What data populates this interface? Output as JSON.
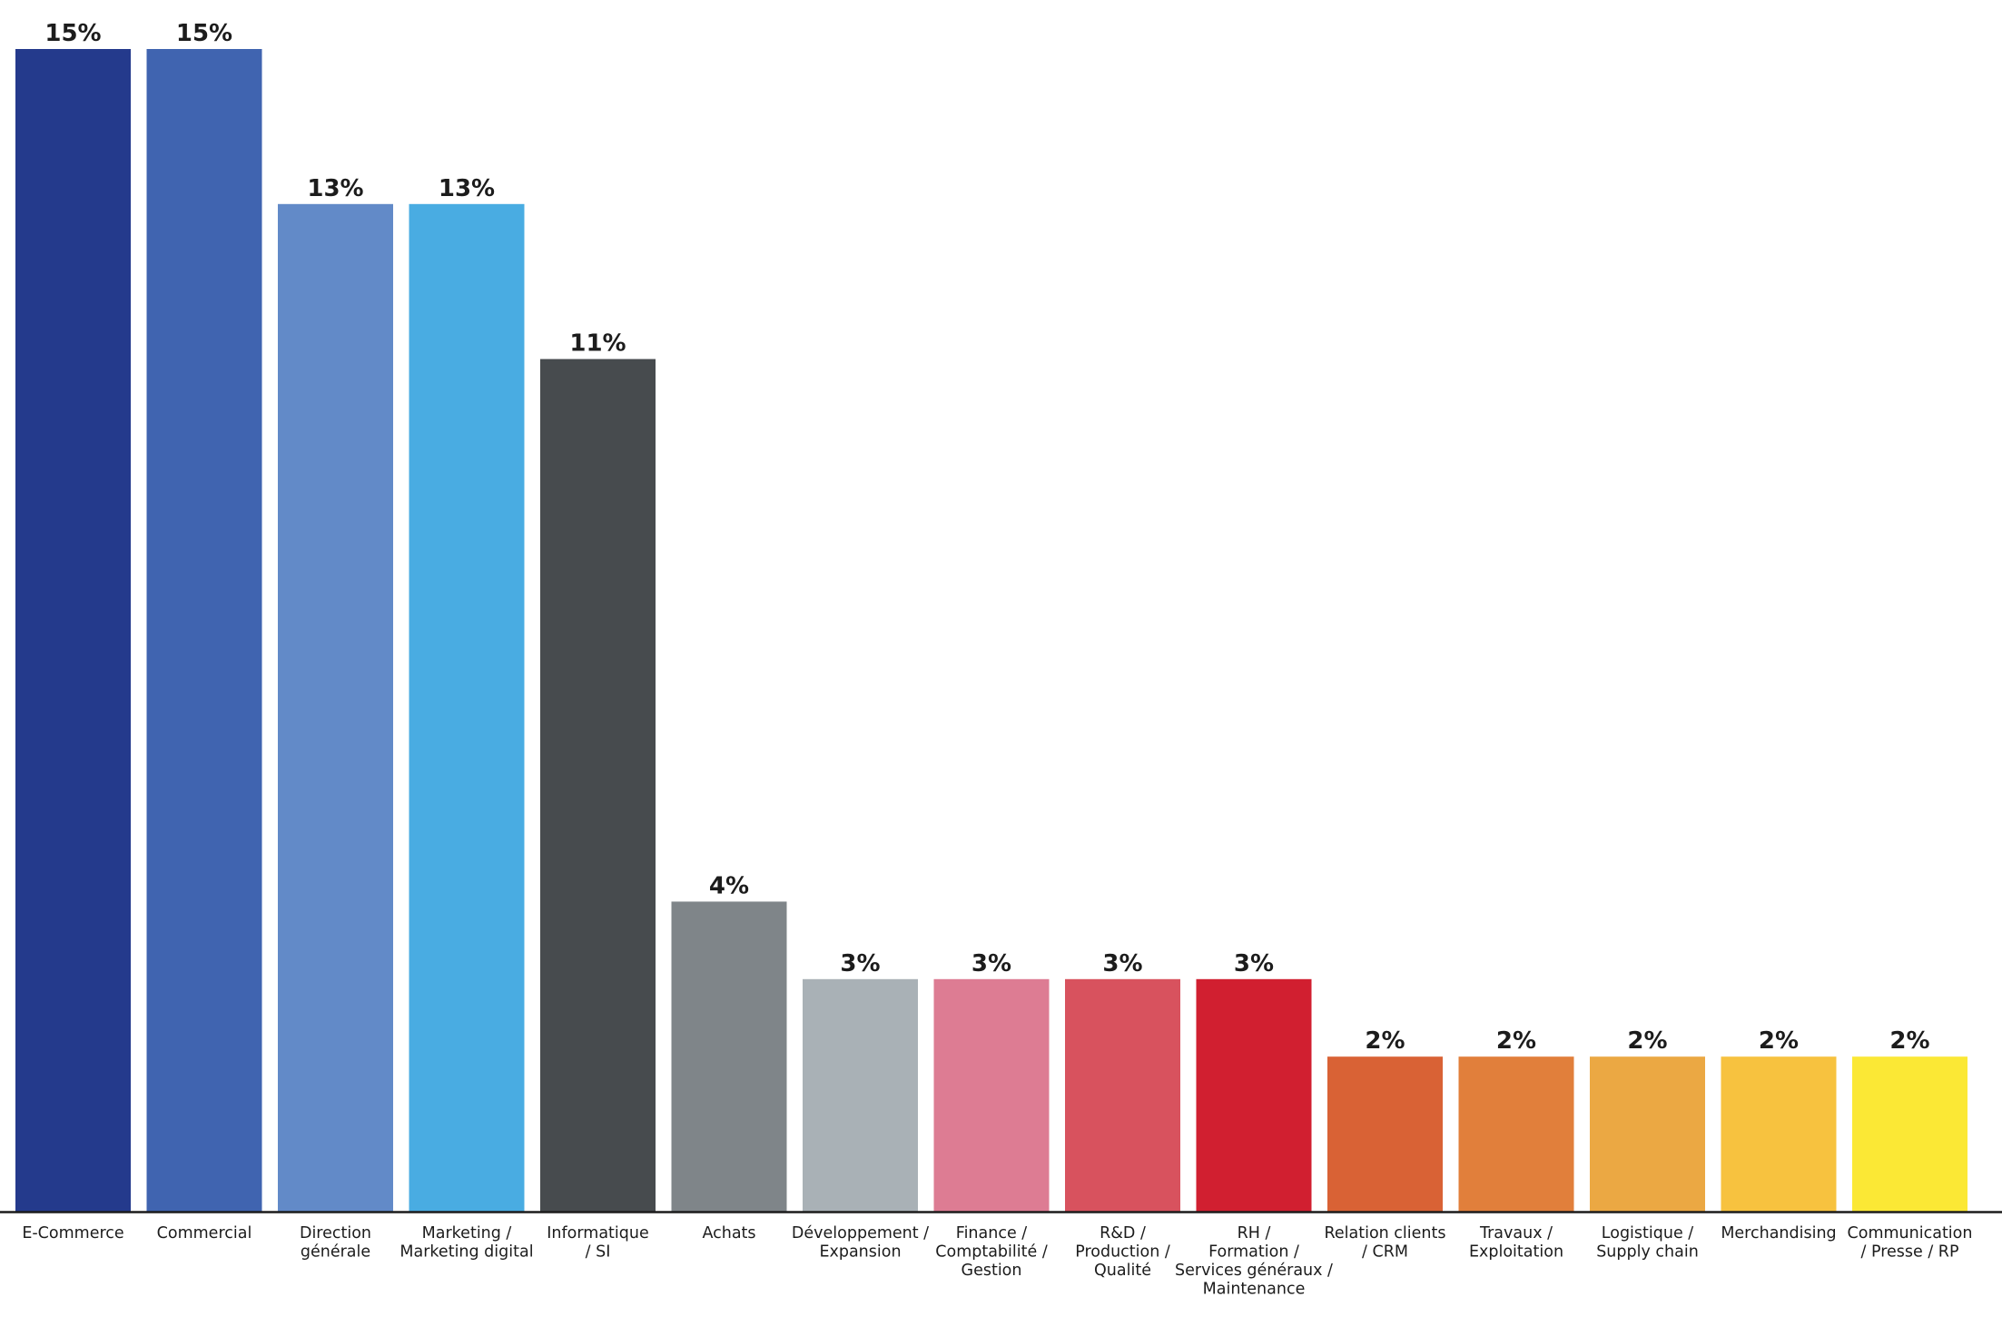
{
  "chart_data": {
    "type": "bar",
    "title": "",
    "xlabel": "",
    "ylabel": "",
    "ylim": [
      0,
      15
    ],
    "grid": false,
    "legend": "none",
    "categories": [
      "E-Commerce",
      "Commercial",
      "Direction générale",
      "Marketing / Marketing digital",
      "Informatique / SI",
      "Achats",
      "Développement / Expansion",
      "Finance / Comptabilité / Gestion",
      "R&D / Production / Qualité",
      "RH / Formation / Services généraux / Maintenance",
      "Relation clients / CRM",
      "Travaux / Exploitation",
      "Logistique / Supply chain",
      "Merchandising",
      "Communication / Presse / RP"
    ],
    "category_lines": [
      [
        "E-Commerce"
      ],
      [
        "Commercial"
      ],
      [
        "Direction",
        "générale"
      ],
      [
        "Marketing /",
        "Marketing digital"
      ],
      [
        "Informatique",
        "/ SI"
      ],
      [
        "Achats"
      ],
      [
        "Développement /",
        "Expansion"
      ],
      [
        "Finance /",
        "Comptabilité /",
        "Gestion"
      ],
      [
        "R&D /",
        "Production /",
        "Qualité"
      ],
      [
        "RH /",
        "Formation /",
        "Services généraux /",
        "Maintenance"
      ],
      [
        "Relation clients",
        "/ CRM"
      ],
      [
        "Travaux /",
        "Exploitation"
      ],
      [
        "Logistique /",
        "Supply chain"
      ],
      [
        "Merchandising"
      ],
      [
        "Communication",
        "/ Presse / RP"
      ]
    ],
    "values": [
      15,
      15,
      13,
      13,
      11,
      4,
      3,
      3,
      3,
      3,
      2,
      2,
      2,
      2,
      2
    ],
    "value_labels": [
      "15%",
      "15%",
      "13%",
      "13%",
      "11%",
      "4%",
      "3%",
      "3%",
      "3%",
      "3%",
      "2%",
      "2%",
      "2%",
      "2%",
      "2%"
    ],
    "colors": [
      "#243a8c",
      "#4064b0",
      "#628ac8",
      "#49ace2",
      "#474b4e",
      "#7f8589",
      "#a9b1b6",
      "#dd7c93",
      "#d8525e",
      "#d11f30",
      "#d96235",
      "#e17f3b",
      "#eba843",
      "#f7c23f",
      "#fbe835"
    ],
    "axis_color": "#1c1c1c"
  }
}
